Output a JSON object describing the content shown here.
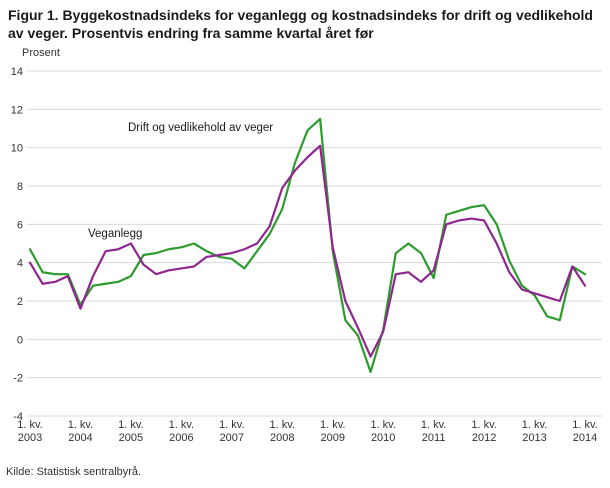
{
  "source": "Kilde: Statistisk sentralbyrå.",
  "chart_data": {
    "type": "line",
    "title": "Figur 1. Byggekostnadsindeks for veganlegg og kostnadsindeks for drift og vedlikehold av veger. Prosentvis endring fra samme kvartal året før",
    "ylabel": "Prosent",
    "xlabel": "",
    "ylim": [
      -4,
      14
    ],
    "ytick_step": 2,
    "grid": "horizontal",
    "x_frequency": "quarterly",
    "x_start": "2003 Q1",
    "x_end": "2014 Q1",
    "x_tick_prefix": "1. kv.",
    "x_tick_years": [
      "2003",
      "2004",
      "2005",
      "2006",
      "2007",
      "2008",
      "2009",
      "2010",
      "2011",
      "2012",
      "2013",
      "2014"
    ],
    "series": [
      {
        "name": "Drift og vedlikehold av veger",
        "color": "#2e9b2e",
        "values": [
          4.7,
          3.5,
          3.4,
          3.4,
          1.8,
          2.8,
          2.9,
          3.0,
          3.3,
          4.4,
          4.5,
          4.7,
          4.8,
          5.0,
          4.6,
          4.3,
          4.2,
          3.7,
          4.6,
          5.5,
          6.8,
          9.2,
          10.9,
          11.5,
          4.6,
          1.0,
          0.2,
          -1.7,
          0.5,
          4.5,
          5.0,
          4.5,
          3.2,
          6.5,
          6.7,
          6.9,
          7.0,
          6.0,
          4.1,
          2.8,
          2.3,
          1.2,
          1.0,
          3.8,
          3.4
        ]
      },
      {
        "name": "Veganlegg",
        "color": "#8e278e",
        "values": [
          4.0,
          2.9,
          3.0,
          3.3,
          1.6,
          3.3,
          4.6,
          4.7,
          5.0,
          3.9,
          3.4,
          3.6,
          3.7,
          3.8,
          4.3,
          4.4,
          4.5,
          4.7,
          5.0,
          5.9,
          7.9,
          8.8,
          9.5,
          10.1,
          4.8,
          2.0,
          0.6,
          -0.9,
          0.4,
          3.4,
          3.5,
          3.0,
          3.6,
          6.0,
          6.2,
          6.3,
          6.2,
          5.0,
          3.5,
          2.6,
          2.4,
          2.2,
          2.0,
          3.8,
          2.8
        ]
      }
    ],
    "legend_position": "inline-labels"
  }
}
